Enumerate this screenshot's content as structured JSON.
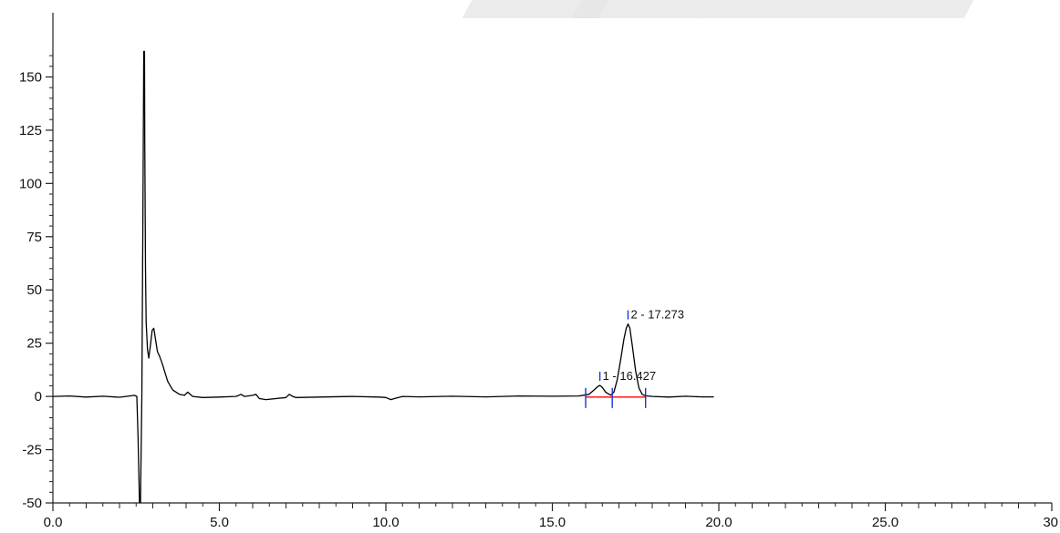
{
  "chart_data": {
    "type": "line",
    "title": "",
    "xlabel": "",
    "ylabel": "",
    "xlim": [
      0,
      30
    ],
    "ylim": [
      -50,
      162
    ],
    "grid": false,
    "legend": "none",
    "x_ticks": [
      0.0,
      5.0,
      10.0,
      15.0,
      20.0,
      25.0,
      30.0
    ],
    "x_tick_labels": [
      "0.0",
      "5.0",
      "10.0",
      "15.0",
      "20.0",
      "25.0",
      "30"
    ],
    "y_ticks": [
      150,
      125,
      100,
      75,
      50,
      25,
      0,
      -25,
      -50
    ],
    "y_tick_labels": [
      "150",
      "125",
      "100",
      "75",
      "50",
      "25",
      "0",
      "-25",
      "-50"
    ],
    "series": [
      {
        "color": "#000000",
        "x": [
          0.0,
          0.5,
          1.0,
          1.5,
          2.0,
          2.3,
          2.45,
          2.52,
          2.56,
          2.6,
          2.63,
          2.67,
          2.7,
          2.73,
          2.75,
          2.76,
          2.78,
          2.8,
          2.84,
          2.88,
          2.93,
          2.98,
          3.03,
          3.08,
          3.14,
          3.2,
          3.27,
          3.35,
          3.45,
          3.6,
          3.8,
          3.95,
          4.05,
          4.2,
          4.5,
          5.0,
          5.5,
          5.65,
          5.75,
          6.0,
          6.1,
          6.2,
          6.4,
          7.0,
          7.1,
          7.2,
          7.3,
          8.0,
          9.0,
          9.8,
          10.0,
          10.15,
          10.3,
          10.5,
          11.0,
          12.0,
          13.0,
          14.0,
          15.0,
          15.8,
          16.1,
          16.25,
          16.35,
          16.427,
          16.5,
          16.6,
          16.75,
          16.85,
          16.95,
          17.05,
          17.15,
          17.22,
          17.273,
          17.33,
          17.4,
          17.5,
          17.6,
          17.7,
          17.8,
          18.0,
          18.5,
          19.0,
          19.5,
          19.85
        ],
        "y": [
          0,
          0.2,
          -0.3,
          0.1,
          -0.4,
          0.2,
          0.5,
          0,
          -20,
          -50,
          -50,
          0,
          80,
          162,
          162,
          120,
          60,
          35,
          22,
          18,
          24,
          31,
          32,
          27,
          21,
          19,
          16,
          12,
          7,
          3,
          1,
          0.5,
          2,
          0,
          -0.5,
          -0.3,
          0,
          1,
          0,
          0.5,
          1,
          -1,
          -1.5,
          -0.5,
          1,
          0,
          -0.5,
          -0.3,
          0,
          -0.3,
          -0.5,
          -1.5,
          -0.8,
          0,
          -0.2,
          0.1,
          -0.2,
          0.2,
          0.1,
          0.2,
          1,
          3,
          4.5,
          5.2,
          4.2,
          2,
          0.6,
          2,
          8,
          17,
          27,
          32,
          34,
          32,
          24,
          12,
          4,
          1,
          0.3,
          0,
          -0.3,
          0.1,
          -0.2,
          -0.2
        ]
      }
    ],
    "baseline": {
      "color": "#ff0000",
      "x_start": 16.0,
      "x_end": 17.8,
      "y": -0.3
    },
    "integration_markers": [
      16.0,
      16.8,
      17.8
    ],
    "peak_markers": [
      {
        "x": 16.427,
        "y": 5.2,
        "label": "1 - 16.427"
      },
      {
        "x": 17.273,
        "y": 34,
        "label": "2 - 17.273"
      }
    ],
    "marker_color": "#1a35d6"
  }
}
